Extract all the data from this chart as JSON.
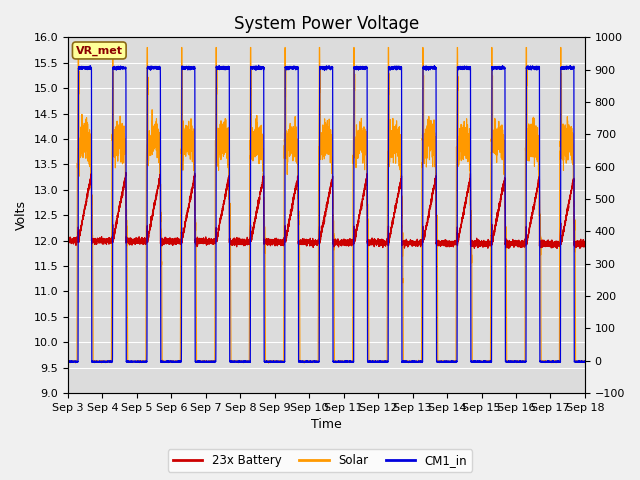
{
  "title": "System Power Voltage",
  "xlabel": "Time",
  "ylabel_left": "Volts",
  "ylim_left": [
    9.0,
    16.0
  ],
  "ylim_right": [
    -100,
    1000
  ],
  "yticks_left": [
    9.0,
    9.5,
    10.0,
    10.5,
    11.0,
    11.5,
    12.0,
    12.5,
    13.0,
    13.5,
    14.0,
    14.5,
    15.0,
    15.5,
    16.0
  ],
  "yticks_right": [
    -100,
    0,
    100,
    200,
    300,
    400,
    500,
    600,
    700,
    800,
    900,
    1000
  ],
  "xtick_labels": [
    "Sep 3",
    "Sep 4",
    "Sep 5",
    "Sep 6",
    "Sep 7",
    "Sep 8",
    "Sep 9",
    "Sep 10",
    "Sep 11",
    "Sep 12",
    "Sep 13",
    "Sep 14",
    "Sep 15",
    "Sep 16",
    "Sep 17",
    "Sep 18"
  ],
  "legend_labels": [
    "23x Battery",
    "Solar",
    "CM1_in"
  ],
  "legend_colors": [
    "#cc0000",
    "#ff9900",
    "#0000dd"
  ],
  "vr_met_label": "VR_met",
  "background_color": "#f0f0f0",
  "plot_bg_color": "#dcdcdc",
  "grid_color": "#ffffff",
  "title_fontsize": 12,
  "axis_fontsize": 9,
  "tick_fontsize": 8
}
